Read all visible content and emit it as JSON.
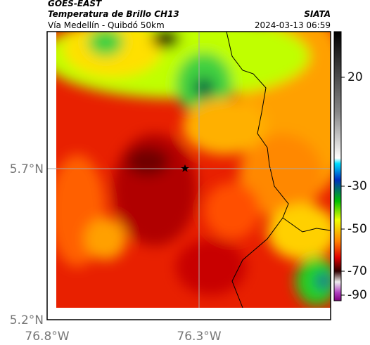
{
  "header": {
    "satellite": "GOES-EAST",
    "product": "Temperatura de Brillo CH13",
    "source": "SIATA",
    "route": "Vía Medellín - Quibdó 50km",
    "datetime": "2024-03-13 06:59"
  },
  "map": {
    "x_labels": [
      "76.8°W",
      "76.3°W"
    ],
    "y_labels": [
      "5.7°N",
      "5.2°N"
    ]
  },
  "colorbar": {
    "ticks": [
      20,
      -30,
      -50,
      -70,
      -90
    ]
  }
}
